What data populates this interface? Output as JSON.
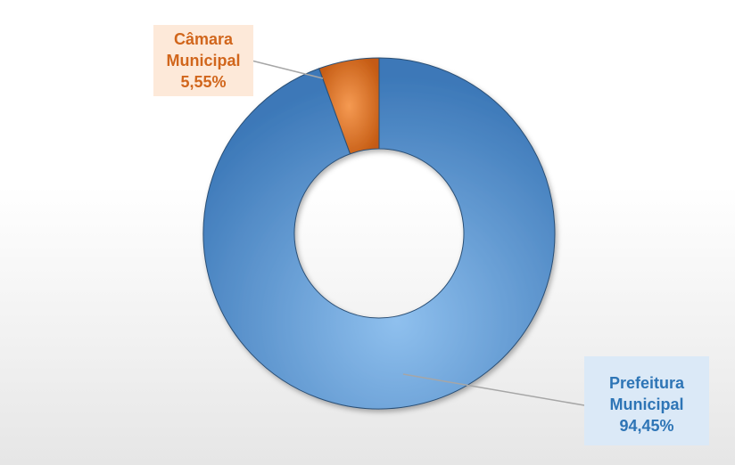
{
  "chart_data": {
    "type": "donut",
    "categories": [
      "Prefeitura Municipal",
      "Câmara Municipal"
    ],
    "values": [
      94.45,
      5.55
    ],
    "value_labels": [
      "94,45%",
      "5,55%"
    ],
    "colors": [
      "#4a8fd3",
      "#e8782a"
    ],
    "label_colors": [
      "#2e75b6",
      "#d1661c"
    ]
  }
}
